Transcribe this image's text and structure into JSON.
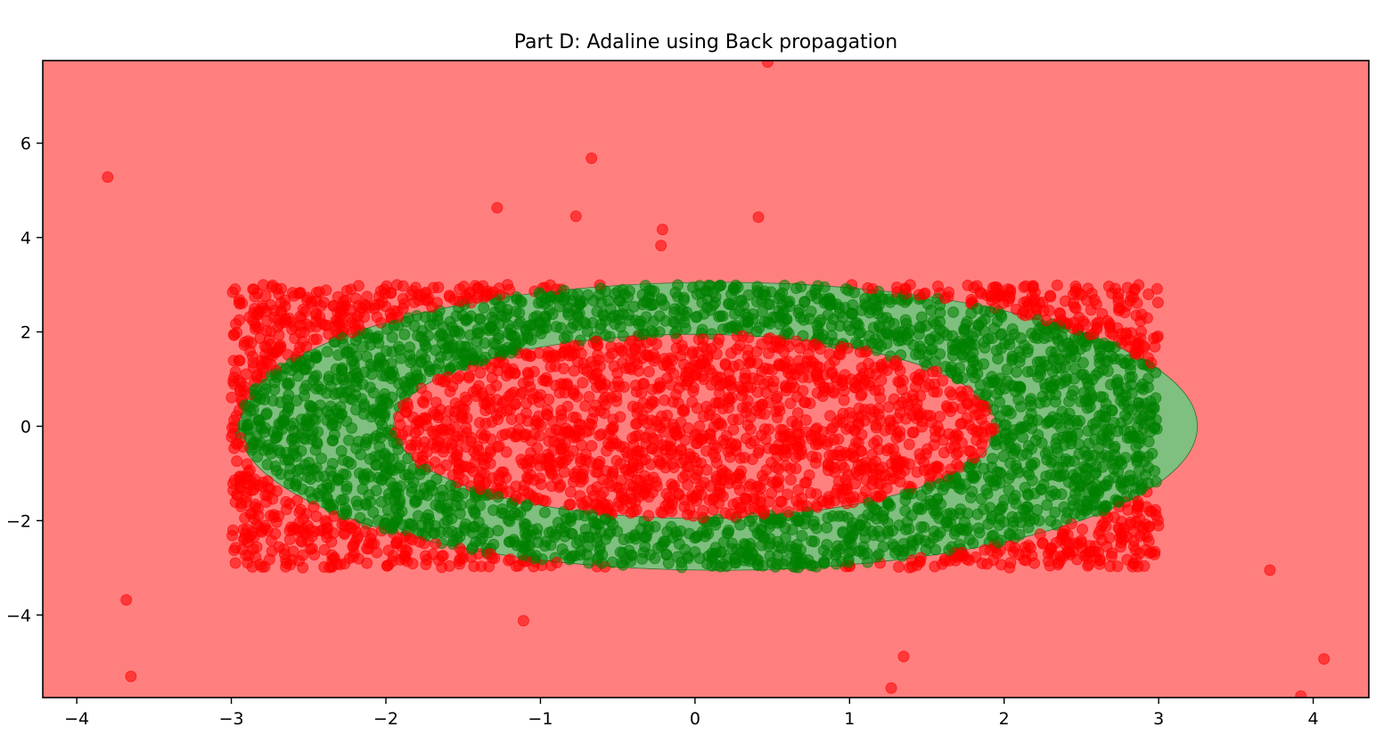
{
  "chart_data": {
    "type": "scatter",
    "title": "Part D: Adaline using Back propagation",
    "xlabel": "",
    "ylabel": "",
    "xlim": [
      -4.22,
      4.36
    ],
    "ylim": [
      -5.75,
      7.75
    ],
    "x_ticks": [
      -4,
      -3,
      -2,
      -1,
      0,
      1,
      2,
      3,
      4
    ],
    "y_ticks": [
      -4,
      -2,
      0,
      2,
      4,
      6
    ],
    "x_tick_labels": [
      "−4",
      "−3",
      "−2",
      "−1",
      "0",
      "1",
      "2",
      "3",
      "4"
    ],
    "y_tick_labels": [
      "−4",
      "−2",
      "0",
      "2",
      "4",
      "6"
    ],
    "grid": false,
    "colors": {
      "negative_region": "#ff7f7f",
      "positive_region": "#7fbf7f",
      "negative_points": "#ff0000",
      "positive_points": "#008000"
    },
    "decision_region": {
      "class": "positive",
      "shape": "elliptical ring",
      "outer_ellipse": {
        "cx": 0.15,
        "cy": 0,
        "rx": 3.1,
        "ry": 3.05
      },
      "inner_ellipse": {
        "cx": 0.0,
        "cy": 0,
        "rx": 1.95,
        "ry": 1.95
      }
    },
    "dense_cloud": {
      "x_range": [
        -3,
        3
      ],
      "y_range": [
        -3,
        3
      ],
      "approx_point_count": 4500,
      "labeling_rule": "points inside the elliptical ring are green, all others red"
    },
    "outliers": [
      {
        "x": -3.8,
        "y": 5.28
      },
      {
        "x": -0.67,
        "y": 5.68
      },
      {
        "x": -1.28,
        "y": 4.63
      },
      {
        "x": -0.77,
        "y": 4.45
      },
      {
        "x": -0.21,
        "y": 4.17
      },
      {
        "x": -0.22,
        "y": 3.83
      },
      {
        "x": 0.41,
        "y": 4.43
      },
      {
        "x": 0.47,
        "y": 7.72
      },
      {
        "x": -3.68,
        "y": -3.68
      },
      {
        "x": -3.65,
        "y": -5.3
      },
      {
        "x": -1.11,
        "y": -4.12
      },
      {
        "x": 1.35,
        "y": -4.88
      },
      {
        "x": 1.27,
        "y": -5.55
      },
      {
        "x": 3.72,
        "y": -3.05
      },
      {
        "x": 4.07,
        "y": -4.93
      },
      {
        "x": 3.92,
        "y": -5.72
      }
    ]
  }
}
